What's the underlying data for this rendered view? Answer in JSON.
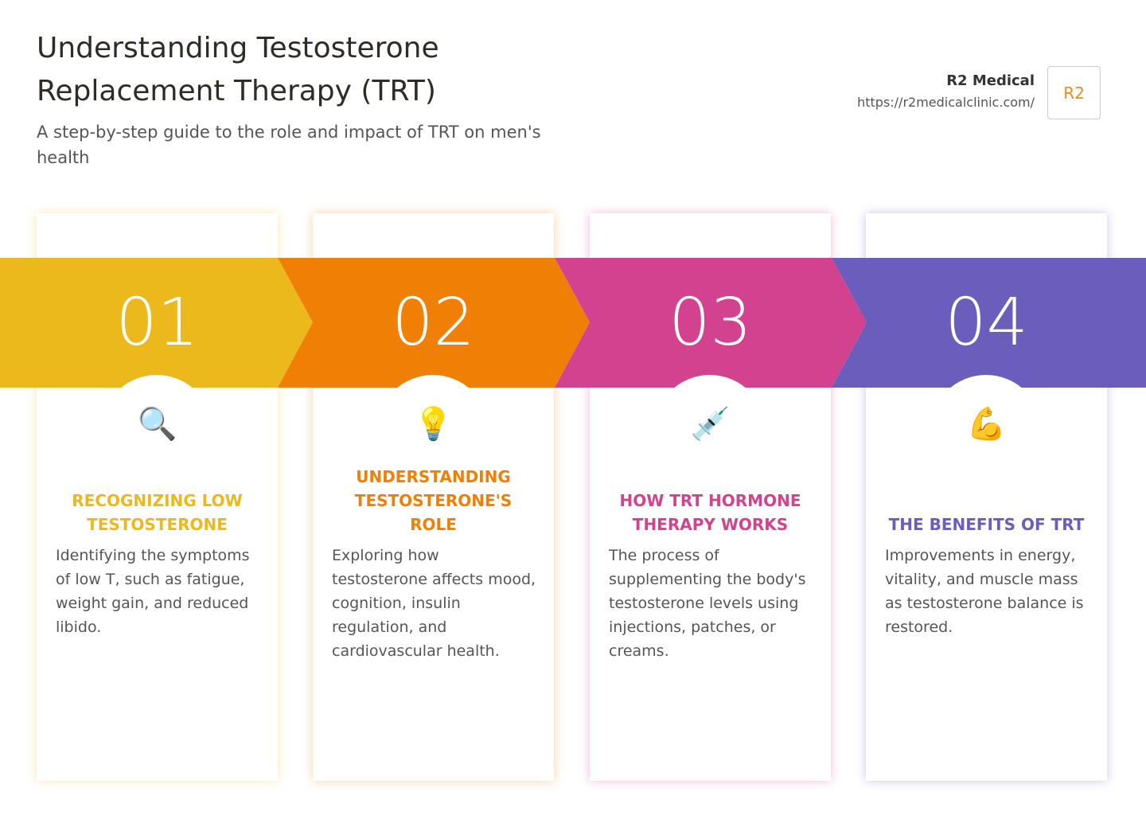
{
  "header": {
    "title": "Understanding Testosterone Replacement Therapy (TRT)",
    "subtitle": "A step-by-step guide to the role and impact of TRT on men's health"
  },
  "brand": {
    "name": "R2 Medical",
    "url": "https://r2medicalclinic.com/",
    "logo": "R2"
  },
  "steps": [
    {
      "number": "01",
      "icon": "🔍",
      "title": "RECOGNIZING LOW TESTOSTERONE",
      "text": "Identifying the symptoms of low T, such as fatigue, weight gain, and reduced libido.",
      "color": "#ebb91c"
    },
    {
      "number": "02",
      "icon": "💡",
      "title": "UNDERSTANDING TESTOSTERONE'S ROLE",
      "text": "Exploring how testosterone affects mood, cognition, insulin regulation, and cardiovascular health.",
      "color": "#f08005"
    },
    {
      "number": "03",
      "icon": "💉",
      "title": "HOW TRT HORMONE THERAPY WORKS",
      "text": "The process of supplementing the body's testosterone levels using injections, patches, or creams.",
      "color": "#d2428f"
    },
    {
      "number": "04",
      "icon": "💪",
      "title": "THE BENEFITS OF TRT",
      "text": "Improvements in energy, vitality, and muscle mass as testosterone balance is restored.",
      "color": "#6b5dbb"
    }
  ]
}
